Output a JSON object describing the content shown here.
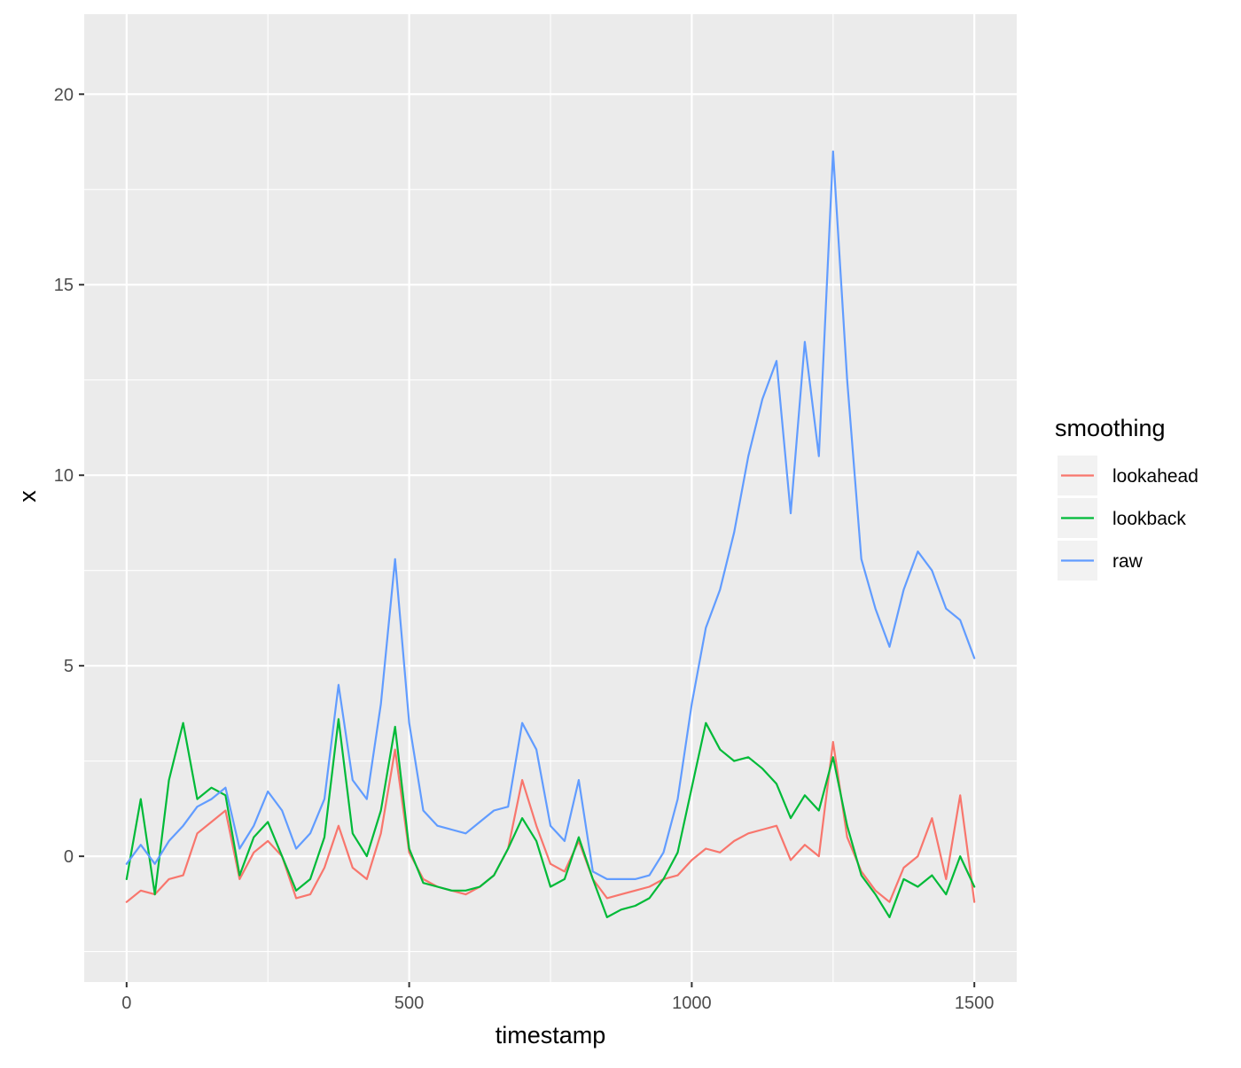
{
  "chart_data": {
    "type": "line",
    "xlabel": "timestamp",
    "ylabel": "x",
    "xlim": [
      -75,
      1575
    ],
    "ylim": [
      -3.3,
      22.1
    ],
    "x_ticks": [
      0,
      500,
      1000,
      1500
    ],
    "y_ticks": [
      0,
      5,
      10,
      15,
      20
    ],
    "x_tick_labels": [
      "0",
      "500",
      "1000",
      "1500"
    ],
    "y_tick_labels": [
      "0",
      "5",
      "10",
      "15",
      "20"
    ],
    "grid": true,
    "legend": {
      "title": "smoothing",
      "position": "right"
    },
    "colors": {
      "panel": "#ebebeb",
      "grid": "#ffffff",
      "lookahead": "#f8766d",
      "lookback": "#00ba38",
      "raw": "#619cff"
    },
    "x": [
      0,
      25,
      50,
      75,
      100,
      125,
      150,
      175,
      200,
      225,
      250,
      275,
      300,
      325,
      350,
      375,
      400,
      425,
      450,
      475,
      500,
      525,
      550,
      575,
      600,
      625,
      650,
      675,
      700,
      725,
      750,
      775,
      800,
      825,
      850,
      875,
      900,
      925,
      950,
      975,
      1000,
      1025,
      1050,
      1075,
      1100,
      1125,
      1150,
      1175,
      1200,
      1225,
      1250,
      1275,
      1300,
      1325,
      1350,
      1375,
      1400,
      1425,
      1450,
      1475,
      1500
    ],
    "series": [
      {
        "name": "lookahead",
        "values": [
          -1.2,
          -0.9,
          -1.0,
          -0.6,
          -0.5,
          0.6,
          0.9,
          1.2,
          -0.6,
          0.1,
          0.4,
          0.0,
          -1.1,
          -1.0,
          -0.3,
          0.8,
          -0.3,
          -0.6,
          0.6,
          2.8,
          0.1,
          -0.6,
          -0.8,
          -0.9,
          -1.0,
          -0.8,
          -0.5,
          0.2,
          2.0,
          0.8,
          -0.2,
          -0.4,
          0.4,
          -0.6,
          -1.1,
          -1.0,
          -0.9,
          -0.8,
          -0.6,
          -0.5,
          -0.1,
          0.2,
          0.1,
          0.4,
          0.6,
          0.7,
          0.8,
          -0.1,
          0.3,
          0.0,
          3.0,
          0.5,
          -0.4,
          -0.9,
          -1.2,
          -0.3,
          0.0,
          1.0,
          -0.6,
          1.6,
          -1.2
        ]
      },
      {
        "name": "lookback",
        "values": [
          -0.6,
          1.5,
          -1.0,
          2.0,
          3.5,
          1.5,
          1.8,
          1.6,
          -0.5,
          0.5,
          0.9,
          0.0,
          -0.9,
          -0.6,
          0.5,
          3.6,
          0.6,
          0.0,
          1.2,
          3.4,
          0.2,
          -0.7,
          -0.8,
          -0.9,
          -0.9,
          -0.8,
          -0.5,
          0.2,
          1.0,
          0.4,
          -0.8,
          -0.6,
          0.5,
          -0.6,
          -1.6,
          -1.4,
          -1.3,
          -1.1,
          -0.6,
          0.1,
          1.8,
          3.5,
          2.8,
          2.5,
          2.6,
          2.3,
          1.9,
          1.0,
          1.6,
          1.2,
          2.6,
          0.8,
          -0.5,
          -1.0,
          -1.6,
          -0.6,
          -0.8,
          -0.5,
          -1.0,
          0.0,
          -0.8
        ]
      },
      {
        "name": "raw",
        "values": [
          -0.2,
          0.3,
          -0.2,
          0.4,
          0.8,
          1.3,
          1.5,
          1.8,
          0.2,
          0.8,
          1.7,
          1.2,
          0.2,
          0.6,
          1.5,
          4.5,
          2.0,
          1.5,
          4.0,
          7.8,
          3.5,
          1.2,
          0.8,
          0.7,
          0.6,
          0.9,
          1.2,
          1.3,
          3.5,
          2.8,
          0.8,
          0.4,
          2.0,
          -0.4,
          -0.6,
          -0.6,
          -0.6,
          -0.5,
          0.1,
          1.5,
          4.0,
          6.0,
          7.0,
          8.5,
          10.5,
          12.0,
          13.0,
          9.0,
          13.5,
          10.5,
          18.5,
          12.5,
          7.8,
          6.5,
          5.5,
          7.0,
          8.0,
          7.5,
          6.5,
          6.2,
          5.2
        ]
      }
    ]
  }
}
